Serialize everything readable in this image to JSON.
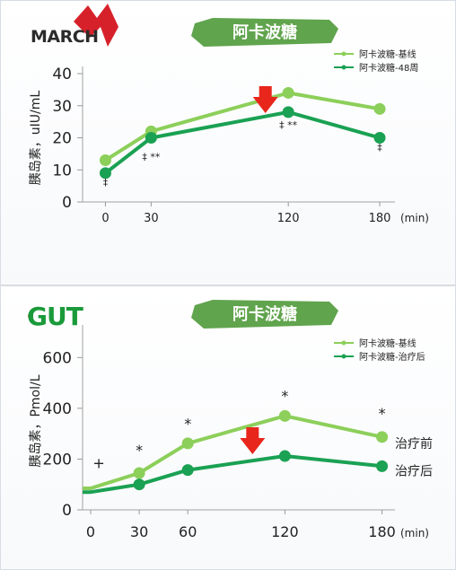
{
  "colors": {
    "baseline": "#8ccf5a",
    "week48": "#1aa153",
    "arrow": "#e8261c",
    "brush": "#4f9a3a",
    "logo_red": "#d7212a"
  },
  "chart_data": [
    {
      "type": "line",
      "logo": "MARCH",
      "title": "阿卡波糖",
      "ylabel": "胰岛素，uIU/mL",
      "xunit": "(min)",
      "ylim": [
        0,
        40
      ],
      "yticks": [
        "0",
        "10",
        "20",
        "30",
        "40"
      ],
      "x": [
        0,
        30,
        120,
        180
      ],
      "xticks": [
        "0",
        "30",
        "120",
        "180"
      ],
      "series": [
        {
          "name": "阿卡波糖-基线",
          "values": [
            13,
            22,
            34,
            29
          ]
        },
        {
          "name": "阿卡波糖-48周",
          "values": [
            9,
            20,
            28,
            20
          ]
        }
      ],
      "annotations": [
        {
          "x": 0,
          "y": 5,
          "text": "‡"
        },
        {
          "x": 30,
          "y": 13,
          "text": "‡ **"
        },
        {
          "x": 120,
          "y": 23,
          "text": "‡ **"
        },
        {
          "x": 180,
          "y": 16,
          "text": "‡"
        }
      ],
      "arrow_x": 105
    },
    {
      "type": "line",
      "logo": "GUT",
      "title": "阿卡波糖",
      "ylabel": "胰岛素，Pmol/L",
      "xunit": "(min)",
      "ylim": [
        0,
        700
      ],
      "yticks": [
        "0",
        "200",
        "400",
        "600"
      ],
      "x": [
        0,
        30,
        60,
        120,
        180
      ],
      "xticks": [
        "0",
        "30",
        "60",
        "120",
        "180"
      ],
      "series": [
        {
          "name": "阿卡波糖-基线",
          "values": [
            85,
            145,
            262,
            370,
            287
          ],
          "end_label": "治疗前"
        },
        {
          "name": "阿卡波糖-治疗后",
          "values": [
            70,
            100,
            157,
            212,
            172
          ],
          "end_label": "治疗后"
        }
      ],
      "annotations": [
        {
          "x": 5,
          "y": 165,
          "text": "+"
        },
        {
          "x": 30,
          "y": 215,
          "text": "*"
        },
        {
          "x": 60,
          "y": 320,
          "text": "*"
        },
        {
          "x": 120,
          "y": 430,
          "text": "*"
        },
        {
          "x": 180,
          "y": 360,
          "text": "*"
        }
      ],
      "arrow_x": 100
    }
  ]
}
